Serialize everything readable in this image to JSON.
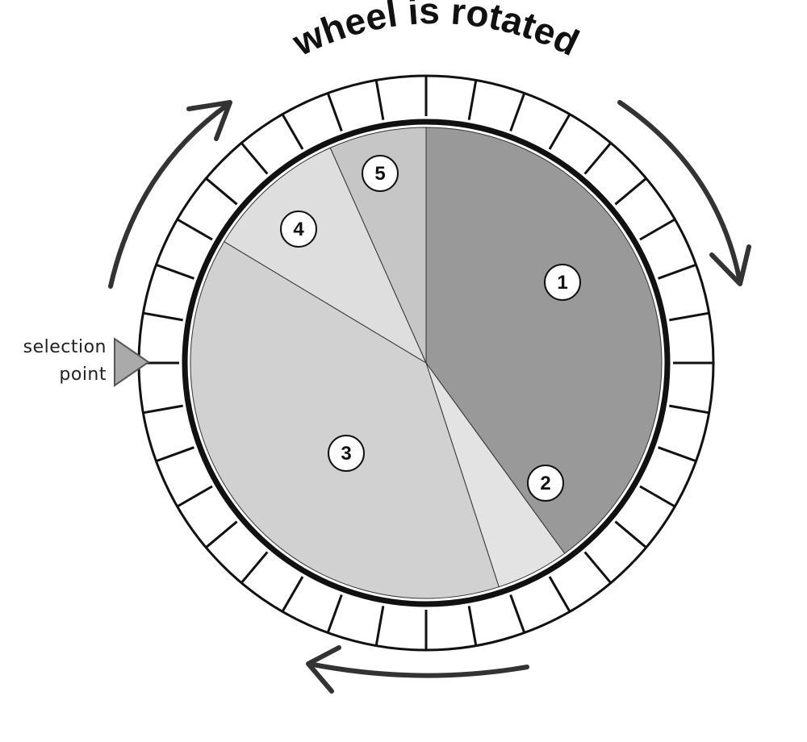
{
  "title": "wheel is rotated",
  "selection_label": [
    "selection",
    "point"
  ],
  "ring_segments": 36,
  "colors": {
    "outline": "#111111",
    "arrow": "#333333",
    "pointer": "#aaaaaa"
  },
  "sectors": [
    {
      "label": "1",
      "start_deg": 0,
      "end_deg": 144,
      "color": "#999999"
    },
    {
      "label": "2",
      "start_deg": 144,
      "end_deg": 162,
      "color": "#e3e3e3"
    },
    {
      "label": "3",
      "start_deg": 162,
      "end_deg": 301,
      "color": "#d1d1d1"
    },
    {
      "label": "4",
      "start_deg": 301,
      "end_deg": 336,
      "color": "#dedede"
    },
    {
      "label": "5",
      "start_deg": 336,
      "end_deg": 360,
      "color": "#c6c6c6"
    }
  ]
}
